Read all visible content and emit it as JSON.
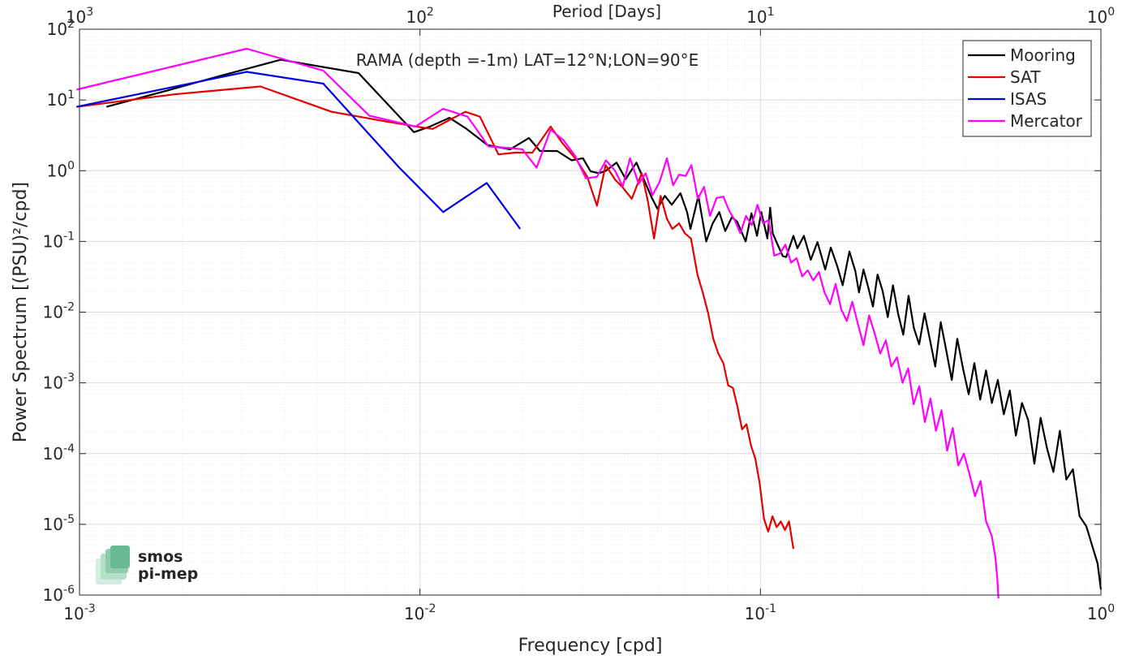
{
  "chart_data": {
    "type": "line",
    "title": "RAMA (depth =-1m) LAT=12°N;LON=90°E",
    "xlabel": "Frequency [cpd]",
    "ylabel": "Power Spectrum [(PSU)²/cpd]",
    "top_axis_label": "Period [Days]",
    "x_scale": "log",
    "y_scale": "log",
    "xlim": [
      0.001,
      1
    ],
    "ylim": [
      1e-06,
      100
    ],
    "grid": "on (major and minor)",
    "legend_position": "top-right",
    "x_ticks": [
      {
        "base": "10",
        "exp": "-3"
      },
      {
        "base": "10",
        "exp": "-2"
      },
      {
        "base": "10",
        "exp": "-1"
      },
      {
        "base": "10",
        "exp": "0"
      }
    ],
    "y_ticks": [
      {
        "base": "10",
        "exp": "-6"
      },
      {
        "base": "10",
        "exp": "-5"
      },
      {
        "base": "10",
        "exp": "-4"
      },
      {
        "base": "10",
        "exp": "-3"
      },
      {
        "base": "10",
        "exp": "-2"
      },
      {
        "base": "10",
        "exp": "-1"
      },
      {
        "base": "10",
        "exp": "0"
      },
      {
        "base": "10",
        "exp": "1"
      },
      {
        "base": "10",
        "exp": "2"
      }
    ],
    "top_ticks": [
      {
        "base": "10",
        "exp": "3"
      },
      {
        "base": "10",
        "exp": "2"
      },
      {
        "base": "10",
        "exp": "1"
      },
      {
        "base": "10",
        "exp": "0"
      }
    ],
    "series": [
      {
        "name": "Mooring",
        "color": "#000000",
        "x": [
          0.0012,
          0.0018,
          0.0026,
          0.0039,
          0.0066,
          0.0096,
          0.0107,
          0.0122,
          0.0136,
          0.0158,
          0.0184,
          0.0209,
          0.0225,
          0.0253,
          0.0279,
          0.0301,
          0.0317,
          0.0336,
          0.0352,
          0.0378,
          0.0402,
          0.0432,
          0.0451,
          0.0479,
          0.0498,
          0.0524,
          0.0549,
          0.0582,
          0.0609,
          0.0623,
          0.0657,
          0.0693,
          0.0724,
          0.0757,
          0.0788,
          0.0824,
          0.0854,
          0.0905,
          0.0941,
          0.0977,
          0.1006,
          0.1048,
          0.1068,
          0.1087,
          0.1113,
          0.1163,
          0.119,
          0.125,
          0.1284,
          0.1342,
          0.1406,
          0.147,
          0.155,
          0.1609,
          0.1683,
          0.1744,
          0.1825,
          0.19,
          0.1947,
          0.2008,
          0.2075,
          0.214,
          0.2208,
          0.2284,
          0.2366,
          0.245,
          0.2537,
          0.2628,
          0.2723,
          0.2822,
          0.2925,
          0.3033,
          0.3145,
          0.3262,
          0.3385,
          0.3513,
          0.3647,
          0.3787,
          0.3934,
          0.4088,
          0.425,
          0.442,
          0.4598,
          0.4784,
          0.498,
          0.5185,
          0.54,
          0.5626,
          0.5863,
          0.6113,
          0.6376,
          0.6652,
          0.6943,
          0.725,
          0.7574,
          0.7916,
          0.8277,
          0.8658,
          0.9061,
          0.9488,
          0.978,
          1.0
        ],
        "y": [
          8.0,
          13.5,
          22.0,
          37.0,
          24.0,
          3.5,
          4.2,
          5.6,
          4.0,
          2.3,
          2.0,
          2.9,
          1.9,
          1.9,
          1.4,
          1.5,
          0.98,
          0.92,
          1.0,
          1.3,
          0.76,
          1.3,
          0.82,
          0.42,
          0.29,
          0.44,
          0.33,
          0.48,
          0.26,
          0.15,
          0.44,
          0.1,
          0.18,
          0.26,
          0.14,
          0.22,
          0.19,
          0.1,
          0.25,
          0.12,
          0.26,
          0.11,
          0.3,
          0.13,
          0.1,
          0.062,
          0.06,
          0.12,
          0.08,
          0.12,
          0.055,
          0.098,
          0.04,
          0.082,
          0.044,
          0.024,
          0.072,
          0.038,
          0.019,
          0.04,
          0.022,
          0.012,
          0.034,
          0.02,
          0.0085,
          0.024,
          0.0095,
          0.0048,
          0.017,
          0.006,
          0.0035,
          0.0096,
          0.0041,
          0.0017,
          0.0072,
          0.0029,
          0.0011,
          0.0042,
          0.0016,
          0.00069,
          0.0019,
          0.00058,
          0.0015,
          0.00052,
          0.0011,
          0.00036,
          0.00078,
          0.00018,
          0.00052,
          0.0003,
          7.2e-05,
          0.00032,
          0.00012,
          5.5e-05,
          0.00021,
          4.3e-05,
          6e-05,
          1.3e-05,
          9.4e-06,
          4.5e-06,
          2.8e-06,
          1.2e-06
        ]
      },
      {
        "name": "SAT",
        "color": "#e50000",
        "x": [
          0.00098,
          0.0019,
          0.0034,
          0.0055,
          0.0079,
          0.0101,
          0.0109,
          0.0122,
          0.0136,
          0.015,
          0.017,
          0.019,
          0.0214,
          0.0242,
          0.0263,
          0.0289,
          0.031,
          0.0331,
          0.0351,
          0.0374,
          0.0394,
          0.0419,
          0.0448,
          0.0467,
          0.0487,
          0.0509,
          0.0531,
          0.0551,
          0.0577,
          0.06,
          0.0625,
          0.0653,
          0.0677,
          0.0702,
          0.0727,
          0.0752,
          0.0778,
          0.0804,
          0.083,
          0.0856,
          0.0883,
          0.091,
          0.0938,
          0.0966,
          0.0995,
          0.1024,
          0.1054,
          0.1085,
          0.1116,
          0.1148,
          0.118,
          0.1213,
          0.125
        ],
        "y": [
          8.0,
          12.0,
          15.5,
          6.8,
          5.0,
          4.1,
          3.9,
          5.2,
          6.8,
          5.8,
          1.7,
          1.8,
          1.8,
          4.2,
          2.4,
          1.4,
          0.82,
          0.32,
          1.2,
          0.75,
          0.58,
          0.4,
          0.92,
          0.37,
          0.11,
          0.44,
          0.21,
          0.15,
          0.18,
          0.13,
          0.11,
          0.034,
          0.019,
          0.0098,
          0.0042,
          0.0026,
          0.0019,
          0.00092,
          0.00085,
          0.00046,
          0.00022,
          0.00026,
          0.00013,
          8.5e-05,
          3.8e-05,
          1.2e-05,
          7.9e-06,
          1.3e-05,
          9.1e-06,
          1.1e-05,
          8.3e-06,
          1.1e-05,
          4.5e-06
        ]
      },
      {
        "name": "ISAS",
        "color": "#0000e5",
        "x": [
          0.00098,
          0.0031,
          0.0052,
          0.0087,
          0.0117,
          0.0157,
          0.0197
        ],
        "y": [
          8.0,
          25.0,
          17.0,
          1.1,
          0.26,
          0.67,
          0.15
        ]
      },
      {
        "name": "Mercator",
        "color": "#ff00ff",
        "x": [
          0.00098,
          0.0031,
          0.0052,
          0.0071,
          0.0097,
          0.0117,
          0.0138,
          0.0159,
          0.0182,
          0.02,
          0.022,
          0.0242,
          0.0264,
          0.0286,
          0.0307,
          0.0331,
          0.0352,
          0.0374,
          0.0394,
          0.0414,
          0.0439,
          0.046,
          0.0482,
          0.0506,
          0.0531,
          0.0554,
          0.0577,
          0.0603,
          0.0627,
          0.0655,
          0.0683,
          0.0711,
          0.0743,
          0.0778,
          0.081,
          0.084,
          0.0873,
          0.0907,
          0.0943,
          0.098,
          0.1018,
          0.1057,
          0.1098,
          0.114,
          0.1184,
          0.123,
          0.1277,
          0.1326,
          0.1377,
          0.143,
          0.1485,
          0.1542,
          0.1601,
          0.1663,
          0.1727,
          0.1793,
          0.1862,
          0.1934,
          0.2008,
          0.2085,
          0.2165,
          0.2248,
          0.2335,
          0.2424,
          0.2518,
          0.2614,
          0.2715,
          0.2819,
          0.2927,
          0.304,
          0.3157,
          0.3278,
          0.3404,
          0.3535,
          0.3671,
          0.3812,
          0.3958,
          0.411,
          0.4268,
          0.4432,
          0.4602,
          0.4779,
          0.49,
          0.4962,
          0.5
        ],
        "y": [
          14.0,
          53.0,
          26.0,
          6.0,
          4.2,
          7.5,
          5.8,
          2.2,
          2.1,
          2.0,
          1.1,
          3.8,
          2.7,
          1.6,
          0.78,
          0.82,
          1.4,
          1.0,
          0.6,
          1.5,
          0.65,
          0.92,
          0.45,
          0.7,
          1.5,
          0.62,
          0.88,
          0.84,
          1.2,
          0.4,
          0.59,
          0.23,
          0.41,
          0.43,
          0.27,
          0.2,
          0.13,
          0.23,
          0.17,
          0.33,
          0.18,
          0.2,
          0.063,
          0.067,
          0.09,
          0.05,
          0.058,
          0.032,
          0.039,
          0.028,
          0.037,
          0.019,
          0.013,
          0.025,
          0.011,
          0.0075,
          0.014,
          0.0068,
          0.0034,
          0.009,
          0.005,
          0.0026,
          0.004,
          0.0017,
          0.0023,
          0.001,
          0.0016,
          0.0005,
          0.0009,
          0.00028,
          0.0006,
          0.00021,
          0.00041,
          0.00011,
          0.00023,
          6.8e-05,
          0.0001,
          5.2e-05,
          2.5e-05,
          4.1e-05,
          1.1e-05,
          6.9e-06,
          3.4e-06,
          1.7e-06,
          9e-07
        ]
      }
    ],
    "watermark": {
      "line1": "smos",
      "line2": "pi-mep",
      "color": "#5fae90"
    }
  }
}
